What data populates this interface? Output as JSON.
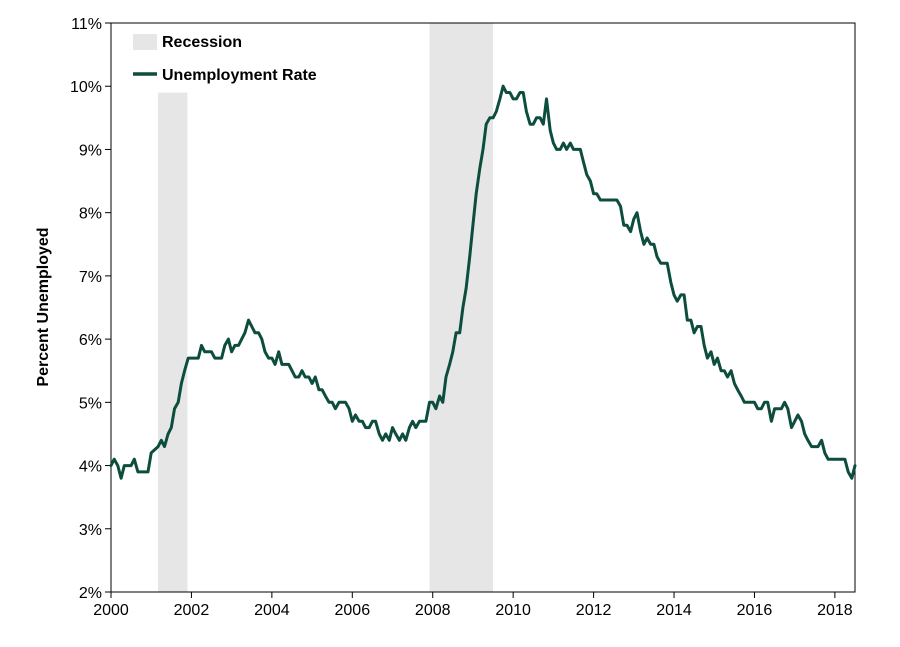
{
  "chart_data": {
    "type": "line",
    "ylabel": "Percent Unemployed",
    "xlim": [
      2000,
      2018.5
    ],
    "ylim": [
      2,
      11
    ],
    "y_ticks": [
      2,
      3,
      4,
      5,
      6,
      7,
      8,
      9,
      10,
      11
    ],
    "y_tick_labels": [
      "2%",
      "3%",
      "4%",
      "5%",
      "6%",
      "7%",
      "8%",
      "9%",
      "10%",
      "11%"
    ],
    "x_ticks": [
      2000,
      2002,
      2004,
      2006,
      2008,
      2010,
      2012,
      2014,
      2016,
      2018
    ],
    "x_tick_labels": [
      "2000",
      "2002",
      "2004",
      "2006",
      "2008",
      "2010",
      "2012",
      "2014",
      "2016",
      "2018"
    ],
    "grid": false,
    "legend": {
      "placement": "top-left",
      "items": [
        {
          "label": "Recession",
          "kind": "band",
          "color": "#e6e6e6"
        },
        {
          "label": "Unemployment Rate",
          "kind": "line",
          "color": "#0d4d3d"
        }
      ]
    },
    "recessions": [
      {
        "start": 2001.17,
        "end": 2001.9,
        "top": 9.9
      },
      {
        "start": 2007.92,
        "end": 2009.5,
        "top": 11
      }
    ],
    "series": [
      {
        "name": "Unemployment Rate",
        "color": "#0d4d3d",
        "points": [
          [
            2000.0,
            4.0
          ],
          [
            2000.08,
            4.1
          ],
          [
            2000.17,
            4.0
          ],
          [
            2000.25,
            3.8
          ],
          [
            2000.33,
            4.0
          ],
          [
            2000.5,
            4.0
          ],
          [
            2000.58,
            4.1
          ],
          [
            2000.67,
            3.9
          ],
          [
            2000.92,
            3.9
          ],
          [
            2001.0,
            4.2
          ],
          [
            2001.17,
            4.3
          ],
          [
            2001.25,
            4.4
          ],
          [
            2001.33,
            4.3
          ],
          [
            2001.42,
            4.5
          ],
          [
            2001.5,
            4.6
          ],
          [
            2001.58,
            4.9
          ],
          [
            2001.67,
            5.0
          ],
          [
            2001.75,
            5.3
          ],
          [
            2001.83,
            5.5
          ],
          [
            2001.92,
            5.7
          ],
          [
            2002.17,
            5.7
          ],
          [
            2002.25,
            5.9
          ],
          [
            2002.33,
            5.8
          ],
          [
            2002.5,
            5.8
          ],
          [
            2002.58,
            5.7
          ],
          [
            2002.75,
            5.7
          ],
          [
            2002.83,
            5.9
          ],
          [
            2002.92,
            6.0
          ],
          [
            2003.0,
            5.8
          ],
          [
            2003.08,
            5.9
          ],
          [
            2003.17,
            5.9
          ],
          [
            2003.25,
            6.0
          ],
          [
            2003.33,
            6.1
          ],
          [
            2003.42,
            6.3
          ],
          [
            2003.5,
            6.2
          ],
          [
            2003.58,
            6.1
          ],
          [
            2003.67,
            6.1
          ],
          [
            2003.75,
            6.0
          ],
          [
            2003.83,
            5.8
          ],
          [
            2003.92,
            5.7
          ],
          [
            2004.0,
            5.7
          ],
          [
            2004.08,
            5.6
          ],
          [
            2004.17,
            5.8
          ],
          [
            2004.25,
            5.6
          ],
          [
            2004.42,
            5.6
          ],
          [
            2004.5,
            5.5
          ],
          [
            2004.58,
            5.4
          ],
          [
            2004.67,
            5.4
          ],
          [
            2004.75,
            5.5
          ],
          [
            2004.83,
            5.4
          ],
          [
            2004.92,
            5.4
          ],
          [
            2005.0,
            5.3
          ],
          [
            2005.08,
            5.4
          ],
          [
            2005.17,
            5.2
          ],
          [
            2005.25,
            5.2
          ],
          [
            2005.33,
            5.1
          ],
          [
            2005.42,
            5.0
          ],
          [
            2005.5,
            5.0
          ],
          [
            2005.58,
            4.9
          ],
          [
            2005.67,
            5.0
          ],
          [
            2005.83,
            5.0
          ],
          [
            2005.92,
            4.9
          ],
          [
            2006.0,
            4.7
          ],
          [
            2006.08,
            4.8
          ],
          [
            2006.17,
            4.7
          ],
          [
            2006.25,
            4.7
          ],
          [
            2006.33,
            4.6
          ],
          [
            2006.42,
            4.6
          ],
          [
            2006.5,
            4.7
          ],
          [
            2006.58,
            4.7
          ],
          [
            2006.67,
            4.5
          ],
          [
            2006.75,
            4.4
          ],
          [
            2006.83,
            4.5
          ],
          [
            2006.92,
            4.4
          ],
          [
            2007.0,
            4.6
          ],
          [
            2007.08,
            4.5
          ],
          [
            2007.17,
            4.4
          ],
          [
            2007.25,
            4.5
          ],
          [
            2007.33,
            4.4
          ],
          [
            2007.42,
            4.6
          ],
          [
            2007.5,
            4.7
          ],
          [
            2007.58,
            4.6
          ],
          [
            2007.67,
            4.7
          ],
          [
            2007.83,
            4.7
          ],
          [
            2007.92,
            5.0
          ],
          [
            2008.0,
            5.0
          ],
          [
            2008.08,
            4.9
          ],
          [
            2008.17,
            5.1
          ],
          [
            2008.25,
            5.0
          ],
          [
            2008.33,
            5.4
          ],
          [
            2008.42,
            5.6
          ],
          [
            2008.5,
            5.8
          ],
          [
            2008.58,
            6.1
          ],
          [
            2008.67,
            6.1
          ],
          [
            2008.75,
            6.5
          ],
          [
            2008.83,
            6.8
          ],
          [
            2008.92,
            7.3
          ],
          [
            2009.0,
            7.8
          ],
          [
            2009.08,
            8.3
          ],
          [
            2009.17,
            8.7
          ],
          [
            2009.25,
            9.0
          ],
          [
            2009.33,
            9.4
          ],
          [
            2009.42,
            9.5
          ],
          [
            2009.5,
            9.5
          ],
          [
            2009.58,
            9.6
          ],
          [
            2009.67,
            9.8
          ],
          [
            2009.75,
            10.0
          ],
          [
            2009.83,
            9.9
          ],
          [
            2009.92,
            9.9
          ],
          [
            2010.0,
            9.8
          ],
          [
            2010.08,
            9.8
          ],
          [
            2010.17,
            9.9
          ],
          [
            2010.25,
            9.9
          ],
          [
            2010.33,
            9.6
          ],
          [
            2010.42,
            9.4
          ],
          [
            2010.5,
            9.4
          ],
          [
            2010.58,
            9.5
          ],
          [
            2010.67,
            9.5
          ],
          [
            2010.75,
            9.4
          ],
          [
            2010.83,
            9.8
          ],
          [
            2010.92,
            9.3
          ],
          [
            2011.0,
            9.1
          ],
          [
            2011.08,
            9.0
          ],
          [
            2011.17,
            9.0
          ],
          [
            2011.25,
            9.1
          ],
          [
            2011.33,
            9.0
          ],
          [
            2011.42,
            9.1
          ],
          [
            2011.5,
            9.0
          ],
          [
            2011.67,
            9.0
          ],
          [
            2011.75,
            8.8
          ],
          [
            2011.83,
            8.6
          ],
          [
            2011.92,
            8.5
          ],
          [
            2012.0,
            8.3
          ],
          [
            2012.08,
            8.3
          ],
          [
            2012.17,
            8.2
          ],
          [
            2012.58,
            8.2
          ],
          [
            2012.67,
            8.1
          ],
          [
            2012.75,
            7.8
          ],
          [
            2012.83,
            7.8
          ],
          [
            2012.92,
            7.7
          ],
          [
            2013.0,
            7.9
          ],
          [
            2013.08,
            8.0
          ],
          [
            2013.17,
            7.7
          ],
          [
            2013.25,
            7.5
          ],
          [
            2013.33,
            7.6
          ],
          [
            2013.42,
            7.5
          ],
          [
            2013.5,
            7.5
          ],
          [
            2013.58,
            7.3
          ],
          [
            2013.67,
            7.2
          ],
          [
            2013.83,
            7.2
          ],
          [
            2013.92,
            6.9
          ],
          [
            2014.0,
            6.7
          ],
          [
            2014.08,
            6.6
          ],
          [
            2014.17,
            6.7
          ],
          [
            2014.25,
            6.7
          ],
          [
            2014.33,
            6.3
          ],
          [
            2014.42,
            6.3
          ],
          [
            2014.5,
            6.1
          ],
          [
            2014.58,
            6.2
          ],
          [
            2014.67,
            6.2
          ],
          [
            2014.75,
            5.9
          ],
          [
            2014.83,
            5.7
          ],
          [
            2014.92,
            5.8
          ],
          [
            2015.0,
            5.6
          ],
          [
            2015.08,
            5.7
          ],
          [
            2015.17,
            5.5
          ],
          [
            2015.25,
            5.5
          ],
          [
            2015.33,
            5.4
          ],
          [
            2015.42,
            5.5
          ],
          [
            2015.5,
            5.3
          ],
          [
            2015.58,
            5.2
          ],
          [
            2015.67,
            5.1
          ],
          [
            2015.75,
            5.0
          ],
          [
            2015.92,
            5.0
          ],
          [
            2016.0,
            5.0
          ],
          [
            2016.08,
            4.9
          ],
          [
            2016.17,
            4.9
          ],
          [
            2016.25,
            5.0
          ],
          [
            2016.33,
            5.0
          ],
          [
            2016.42,
            4.7
          ],
          [
            2016.5,
            4.9
          ],
          [
            2016.58,
            4.9
          ],
          [
            2016.67,
            4.9
          ],
          [
            2016.75,
            5.0
          ],
          [
            2016.83,
            4.9
          ],
          [
            2016.92,
            4.6
          ],
          [
            2017.0,
            4.7
          ],
          [
            2017.08,
            4.8
          ],
          [
            2017.17,
            4.7
          ],
          [
            2017.25,
            4.5
          ],
          [
            2017.33,
            4.4
          ],
          [
            2017.42,
            4.3
          ],
          [
            2017.58,
            4.3
          ],
          [
            2017.67,
            4.4
          ],
          [
            2017.75,
            4.2
          ],
          [
            2017.83,
            4.1
          ],
          [
            2018.25,
            4.1
          ],
          [
            2018.33,
            3.9
          ],
          [
            2018.42,
            3.8
          ],
          [
            2018.5,
            4.0
          ]
        ]
      }
    ]
  }
}
